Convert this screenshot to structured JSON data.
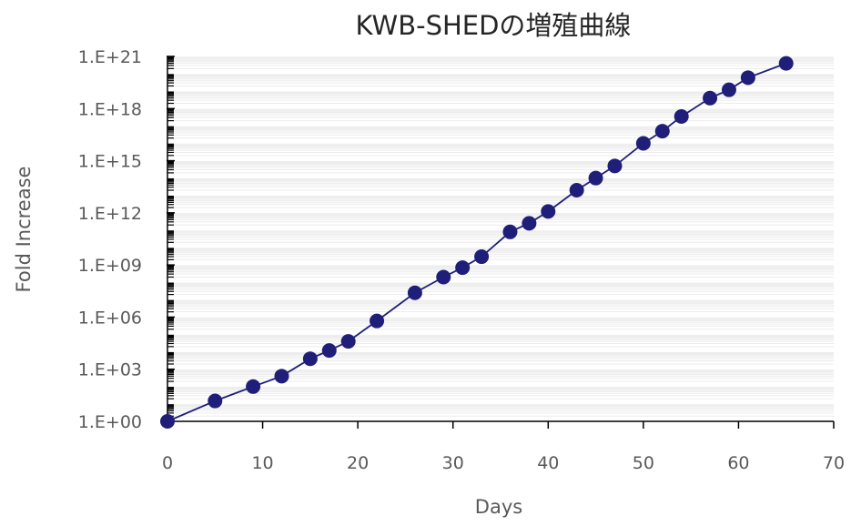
{
  "chart_data": {
    "type": "scatter",
    "title": "KWB-SHEDの増殖曲線",
    "xlabel": "Days",
    "ylabel": "Fold Increase",
    "xlim": [
      0,
      70
    ],
    "ylim_log10": [
      0,
      21
    ],
    "y_scale": "log",
    "grid": true,
    "legend": "none",
    "x_ticks": [
      "0",
      "10",
      "20",
      "30",
      "40",
      "50",
      "60",
      "70"
    ],
    "y_ticks": [
      "1.E+00",
      "1.E+03",
      "1.E+06",
      "1.E+09",
      "1.E+12",
      "1.E+15",
      "1.E+18",
      "1.E+21"
    ],
    "marker_color": "#1f1f7a",
    "line_color": "#1f1f7a",
    "series": [
      {
        "x": [
          0,
          5,
          9,
          12,
          15,
          17,
          19,
          22,
          26,
          29,
          31,
          33,
          36,
          38,
          40,
          43,
          45,
          47,
          50,
          52,
          54,
          57,
          59,
          61,
          65
        ],
        "y": [
          "1.0E+00",
          "1.5E+01",
          "1.0E+02",
          "4.0E+02",
          "4.0E+03",
          "1.2E+04",
          "4.0E+04",
          "6.0E+05",
          "2.5E+07",
          "2.0E+08",
          "7.0E+08",
          "3.0E+09",
          "8.0E+10",
          "2.5E+11",
          "1.2E+12",
          "2.0E+13",
          "1.0E+14",
          "5.0E+14",
          "1.0E+16",
          "5.0E+16",
          "3.5E+17",
          "4.0E+18",
          "1.2E+19",
          "6.0E+19",
          "4.0E+20"
        ]
      }
    ]
  }
}
